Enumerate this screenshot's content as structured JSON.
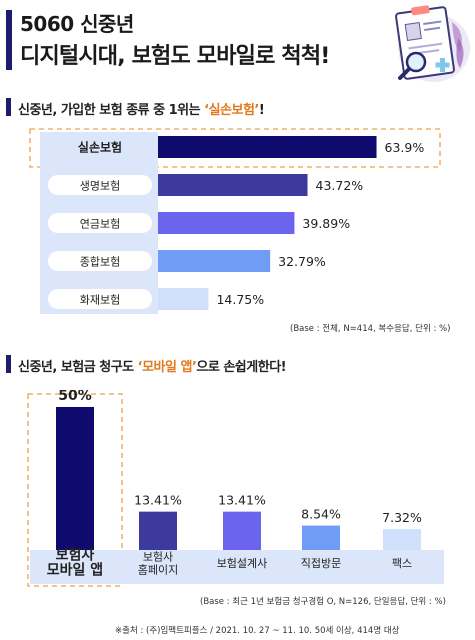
{
  "header": {
    "title_line1": "5060 신중년",
    "title_line2": "디지털시대, 보험도 모바일로 척척!"
  },
  "section1": {
    "title_prefix": "신중년, 가입한 보험 종류 중 1위는 ",
    "title_highlight": "‘실손보험’",
    "title_suffix": "!",
    "note": "(Base : 전체, N=414, 복수응답, 단위 : %)"
  },
  "section2": {
    "title_prefix": "신중년, 보험금 청구도 ",
    "title_highlight": "‘모바일 앱’",
    "title_suffix": "으로 손쉽게한다!",
    "note": "(Base : 최근 1년 보험금 청구경험 O, N=126, 단일응답, 단위 : %)"
  },
  "source": "※출처 : (주)임팩트피플스 / 2021. 10. 27 ~ 11. 10. 50세 이상, 414명 대상",
  "colors": {
    "accent": "#e07a1b",
    "navy": "#1d1d6f",
    "bars": [
      "#0e0a6e",
      "#3d3a9e",
      "#6a64ee",
      "#6f9cf4",
      "#cfdffc"
    ]
  },
  "chart_data": [
    {
      "type": "bar",
      "orientation": "horizontal",
      "categories": [
        "실손보험",
        "생명보험",
        "연금보험",
        "종합보험",
        "화재보험"
      ],
      "values": [
        63.9,
        43.72,
        39.89,
        32.79,
        14.75
      ],
      "value_labels": [
        "63.9%",
        "43.72%",
        "39.89%",
        "32.79%",
        "14.75%"
      ],
      "highlight": "실손보험"
    },
    {
      "type": "bar",
      "orientation": "vertical",
      "categories": [
        "보험사 모바일 앱",
        "보험사 홈페이지",
        "보험설계사",
        "직접방문",
        "팩스"
      ],
      "values": [
        50,
        13.41,
        13.41,
        8.54,
        7.32
      ],
      "value_labels": [
        "50%",
        "13.41%",
        "13.41%",
        "8.54%",
        "7.32%"
      ],
      "highlight": "보험사 모바일 앱"
    }
  ]
}
